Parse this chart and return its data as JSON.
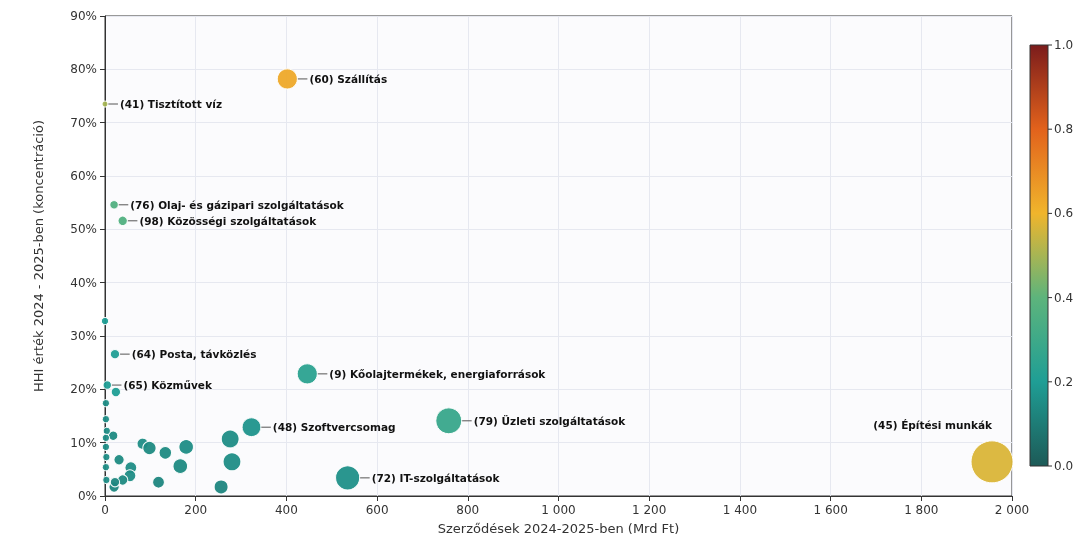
{
  "chart_data": {
    "type": "bubble",
    "xlabel": "Szerződések 2024-2025-ben (Mrd Ft)",
    "ylabel": "HHI érték 2024 - 2025-ben (koncentráció)",
    "x": [
      0,
      402,
      20,
      39,
      22,
      446,
      5,
      24,
      0,
      323,
      758,
      535,
      1956,
      2,
      2,
      18,
      4,
      83,
      98,
      133,
      179,
      166,
      118,
      256,
      276,
      280,
      31,
      57,
      55,
      39,
      20,
      22,
      2,
      3,
      2,
      3,
      2
    ],
    "values": [
      73.5,
      78.2,
      54.6,
      51.6,
      26.6,
      22.9,
      20.8,
      19.5,
      32.8,
      12.9,
      14.1,
      3.4,
      6.4,
      17.4,
      14.4,
      11.3,
      12.2,
      9.8,
      9.0,
      8.1,
      9.2,
      5.6,
      2.6,
      1.7,
      10.7,
      6.4,
      6.8,
      5.3,
      3.8,
      3.0,
      1.7,
      2.6,
      9.2,
      7.3,
      5.4,
      3.0,
      10.9
    ],
    "sizes": [
      0.02,
      0.23,
      0.04,
      0.05,
      0.05,
      0.23,
      0.04,
      0.05,
      0.03,
      0.2,
      0.38,
      0.33,
      1,
      0.03,
      0.03,
      0.05,
      0.03,
      0.07,
      0.1,
      0.09,
      0.12,
      0.12,
      0.08,
      0.11,
      0.18,
      0.18,
      0.06,
      0.08,
      0.08,
      0.06,
      0.06,
      0.05,
      0.03,
      0.03,
      0.03,
      0.03,
      0.03
    ],
    "cvalues": [
      0.5,
      0.63,
      0.36,
      0.36,
      0.2,
      0.24,
      0.2,
      0.2,
      0.2,
      0.17,
      0.28,
      0.16,
      0.57,
      0.15,
      0.15,
      0.14,
      0.15,
      0.15,
      0.14,
      0.14,
      0.15,
      0.14,
      0.13,
      0.13,
      0.15,
      0.15,
      0.14,
      0.15,
      0.15,
      0.14,
      0.13,
      0.13,
      0.15,
      0.15,
      0.15,
      0.15,
      0.15
    ],
    "clim": [
      0,
      1
    ],
    "cticks": [
      {
        "value": 0,
        "label": "0.0"
      },
      {
        "value": 0.2,
        "label": "0.2"
      },
      {
        "value": 0.4,
        "label": "0.4"
      },
      {
        "value": 0.6,
        "label": "0.6"
      },
      {
        "value": 0.8,
        "label": "0.8"
      },
      {
        "value": 1,
        "label": "1.0"
      }
    ],
    "xlim": [
      0,
      2000
    ],
    "xticks": [
      0,
      200,
      400,
      600,
      800,
      {
        "value": 1000,
        "label": "1 000"
      },
      {
        "value": 1200,
        "label": "1 200"
      },
      {
        "value": 1400,
        "label": "1 400"
      },
      {
        "value": 1600,
        "label": "1 600"
      },
      {
        "value": 1800,
        "label": "1 800"
      },
      {
        "value": 2000,
        "label": "2 000"
      }
    ],
    "ylim": [
      0,
      90
    ],
    "yticks": [
      {
        "value": 0,
        "label": "0%"
      },
      {
        "value": 10,
        "label": "10%"
      },
      {
        "value": 20,
        "label": "20%"
      },
      {
        "value": 30,
        "label": "30%"
      },
      {
        "value": 40,
        "label": "40%"
      },
      {
        "value": 50,
        "label": "50%"
      },
      {
        "value": 60,
        "label": "60%"
      },
      {
        "value": 70,
        "label": "70%"
      },
      {
        "value": 80,
        "label": "80%"
      },
      {
        "value": 90,
        "label": "90%"
      }
    ],
    "annotations": [
      {
        "text": "(41) Tisztított víz",
        "x": 0,
        "y": 73.5
      },
      {
        "text": "(60) Szállítás",
        "x": 402,
        "y": 78.2
      },
      {
        "text": "(76) Olaj- és gázipari szolgáltatások",
        "x": 20,
        "y": 54.6
      },
      {
        "text": "(98) Közösségi szolgáltatások",
        "x": 39,
        "y": 51.6
      },
      {
        "text": "(64) Posta, távközlés",
        "x": 22,
        "y": 26.6
      },
      {
        "text": "(9) Kőolajtermékek, energiaforrások",
        "x": 446,
        "y": 22.9
      },
      {
        "text": "(65) Közművek",
        "x": 5,
        "y": 20.8
      },
      {
        "text": "(48) Szoftvercsomag",
        "x": 323,
        "y": 12.9
      },
      {
        "text": "(79) Üzleti szolgáltatások",
        "x": 758,
        "y": 14.1
      },
      {
        "text": "(72) IT-szolgáltatások",
        "x": 535,
        "y": 3.4
      },
      {
        "text": "(45) Építési munkák",
        "x": 1956,
        "y": 6.4
      }
    ],
    "grid": true,
    "marker": "circle"
  }
}
